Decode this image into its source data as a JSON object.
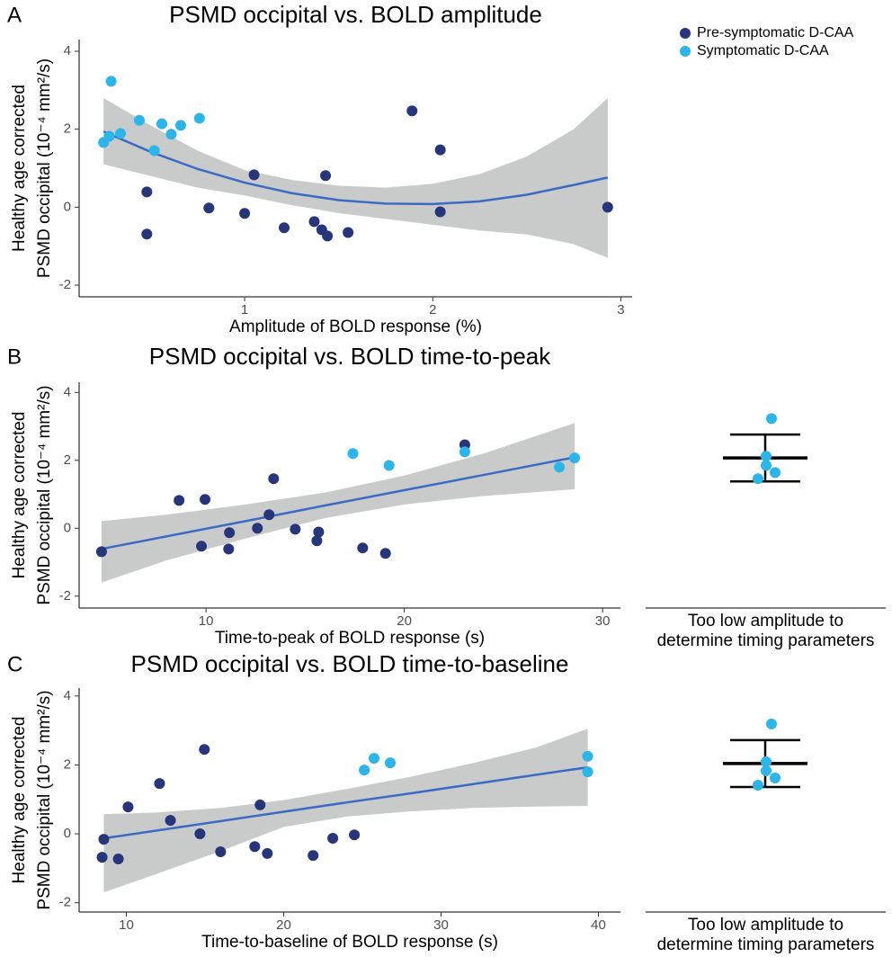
{
  "chart_data": [
    {
      "type": "scatter",
      "panel_label": "A",
      "title": "PSMD occipital vs. BOLD amplitude",
      "x_label": "Amplitude of BOLD response (%)",
      "y_label": [
        "Healthy age corrected",
        "PSMD occipital (10⁻⁴ mm²/s)"
      ],
      "xlim": [
        0.12,
        3.06
      ],
      "ylim": [
        -2.3,
        4.3
      ],
      "xticks": [
        1,
        2,
        3
      ],
      "yticks": [
        -2,
        0,
        2,
        4
      ],
      "legend": "top-right",
      "series": [
        {
          "name": "Pre-symptomatic D-CAA",
          "color": "#27357a",
          "x": [
            0.48,
            0.48,
            0.81,
            1.0,
            1.05,
            1.21,
            1.37,
            1.41,
            1.44,
            1.43,
            1.55,
            1.89,
            2.04,
            2.04,
            2.93
          ],
          "values": [
            0.39,
            -0.69,
            -0.02,
            -0.16,
            0.83,
            -0.53,
            -0.37,
            -0.58,
            -0.74,
            0.81,
            -0.65,
            2.47,
            1.47,
            -0.12,
            0.0
          ]
        },
        {
          "name": "Symptomatic D-CAA",
          "color": "#2cb5e8",
          "x": [
            0.29,
            0.25,
            0.28,
            0.34,
            0.44,
            0.52,
            0.56,
            0.61,
            0.66,
            0.76
          ],
          "values": [
            3.23,
            1.66,
            1.82,
            1.89,
            2.23,
            1.45,
            2.14,
            1.87,
            2.1,
            2.28
          ]
        }
      ],
      "fit": {
        "color": "#3b6bc4",
        "band_color": "#c9caca",
        "x": [
          0.25,
          0.5,
          0.75,
          1.0,
          1.25,
          1.5,
          1.75,
          2.0,
          2.25,
          2.5,
          2.75,
          2.93
        ],
        "values": [
          1.94,
          1.42,
          0.98,
          0.63,
          0.36,
          0.18,
          0.09,
          0.08,
          0.15,
          0.32,
          0.57,
          0.76
        ],
        "upper": [
          2.8,
          2.1,
          1.45,
          0.95,
          0.7,
          0.55,
          0.5,
          0.6,
          0.85,
          1.3,
          2.0,
          2.8
        ],
        "lower": [
          1.1,
          0.8,
          0.5,
          0.3,
          0.05,
          -0.15,
          -0.3,
          -0.45,
          -0.6,
          -0.7,
          -0.95,
          -1.3
        ]
      }
    },
    {
      "type": "scatter",
      "panel_label": "B",
      "title": "PSMD occipital vs. BOLD time-to-peak",
      "x_label": "Time-to-peak of BOLD response (s)",
      "y_label": [
        "Healthy age corrected",
        "PSMD occipital (10⁻⁴ mm²/s)"
      ],
      "xlim": [
        3.6,
        30.9
      ],
      "ylim": [
        -2.35,
        4.3
      ],
      "xticks": [
        10,
        20,
        30
      ],
      "yticks": [
        -2,
        0,
        2,
        4
      ],
      "series": [
        {
          "color": "#27357a",
          "x": [
            4.73,
            8.64,
            9.95,
            9.77,
            11.18,
            11.14,
            12.59,
            13.18,
            13.41,
            14.5,
            15.68,
            15.59,
            17.9,
            19.05,
            23.05
          ],
          "values": [
            -0.69,
            0.82,
            0.85,
            -0.53,
            -0.13,
            -0.61,
            0.0,
            0.4,
            1.46,
            -0.03,
            -0.11,
            -0.37,
            -0.58,
            -0.74,
            2.46
          ]
        },
        {
          "color": "#2cb5e8",
          "x": [
            17.41,
            19.23,
            23.05,
            27.82,
            28.59
          ],
          "values": [
            2.2,
            1.85,
            2.25,
            1.8,
            2.07
          ]
        }
      ],
      "fit": {
        "color": "#3b6bc4",
        "band_color": "#c9caca",
        "x": [
          4.73,
          8,
          12,
          16,
          20,
          24,
          28.59
        ],
        "values": [
          -0.61,
          -0.24,
          0.21,
          0.67,
          1.12,
          1.57,
          2.09
        ],
        "upper": [
          0.21,
          0.4,
          0.7,
          1.05,
          1.55,
          2.2,
          3.1
        ],
        "lower": [
          -1.6,
          -0.95,
          -0.3,
          0.3,
          0.7,
          0.95,
          1.15
        ]
      }
    },
    {
      "type": "strip",
      "x_label": [
        "Too low amplitude to",
        "determine timing parameters"
      ],
      "ylim": [
        -2.35,
        4.3
      ],
      "color": "#2cb5e8",
      "bar_color": "#000000",
      "values": [
        3.23,
        2.12,
        1.85,
        1.64,
        1.46
      ],
      "mean": 2.07,
      "sd": 0.69
    },
    {
      "type": "scatter",
      "panel_label": "C",
      "title": "PSMD occipital vs. BOLD time-to-baseline",
      "x_label": "Time-to-baseline of BOLD response (s)",
      "y_label": [
        "Healthy age corrected",
        "PSMD occipital (10⁻⁴ mm²/s)"
      ],
      "xlim": [
        7.0,
        41.4
      ],
      "ylim": [
        -2.27,
        4.23
      ],
      "xticks": [
        10,
        20,
        30,
        40
      ],
      "yticks": [
        -2,
        0,
        2,
        4
      ],
      "series": [
        {
          "color": "#27357a",
          "x": [
            8.46,
            8.57,
            9.49,
            10.11,
            12.11,
            12.8,
            14.96,
            14.68,
            15.99,
            18.16,
            18.5,
            18.96,
            21.87,
            23.12,
            24.49
          ],
          "values": [
            -0.68,
            -0.16,
            -0.73,
            0.78,
            1.46,
            0.39,
            2.45,
            0.0,
            -0.52,
            -0.37,
            0.84,
            -0.57,
            -0.63,
            -0.13,
            -0.03
          ]
        },
        {
          "color": "#2cb5e8",
          "x": [
            25.12,
            25.74,
            26.77,
            39.32,
            39.32
          ],
          "values": [
            1.85,
            2.19,
            2.06,
            2.25,
            1.8
          ]
        }
      ],
      "fit": {
        "color": "#3b6bc4",
        "band_color": "#c9caca",
        "x": [
          8.57,
          12,
          16,
          20,
          24,
          28,
          32,
          36,
          39.32
        ],
        "values": [
          -0.13,
          0.1,
          0.37,
          0.64,
          0.91,
          1.17,
          1.44,
          1.71,
          1.93
        ],
        "upper": [
          0.57,
          0.62,
          0.75,
          0.98,
          1.3,
          1.65,
          2.05,
          2.5,
          3.05
        ],
        "lower": [
          -1.7,
          -1.15,
          -0.5,
          0.2,
          0.5,
          0.65,
          0.75,
          0.79,
          0.81
        ]
      }
    },
    {
      "type": "strip",
      "x_label": [
        "Too low amplitude to",
        "determine timing parameters"
      ],
      "ylim": [
        -2.27,
        4.23
      ],
      "color": "#2cb5e8",
      "bar_color": "#000000",
      "values": [
        3.19,
        2.09,
        1.83,
        1.62,
        1.41
      ],
      "mean": 2.04,
      "sd": 0.68
    }
  ]
}
